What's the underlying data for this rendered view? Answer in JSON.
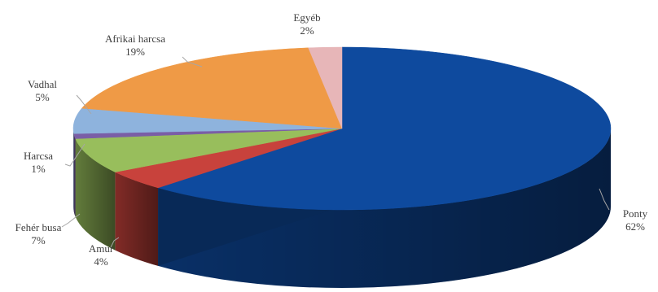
{
  "chart_data": {
    "type": "pie",
    "style": "3d",
    "start": "12 o'clock",
    "direction": "clockwise",
    "slices": [
      {
        "label": "Ponty",
        "pct_label": "62%",
        "value": 62,
        "color": "#0e4a9e"
      },
      {
        "label": "Amur",
        "pct_label": "4%",
        "value": 4,
        "color": "#c8423c"
      },
      {
        "label": "Fehér busa",
        "pct_label": "7%",
        "value": 7,
        "color": "#98be5c"
      },
      {
        "label": "Harcsa",
        "pct_label": "1%",
        "value": 1,
        "color": "#7a5ea6"
      },
      {
        "label": "Vadhal",
        "pct_label": "5%",
        "value": 5,
        "color": "#8eb3dd"
      },
      {
        "label": "Afrikai harcsa",
        "pct_label": "19%",
        "value": 19,
        "color": "#ef9a46"
      },
      {
        "label": "Egyéb",
        "pct_label": "2%",
        "value": 2,
        "color": "#e7b6b8"
      }
    ]
  }
}
